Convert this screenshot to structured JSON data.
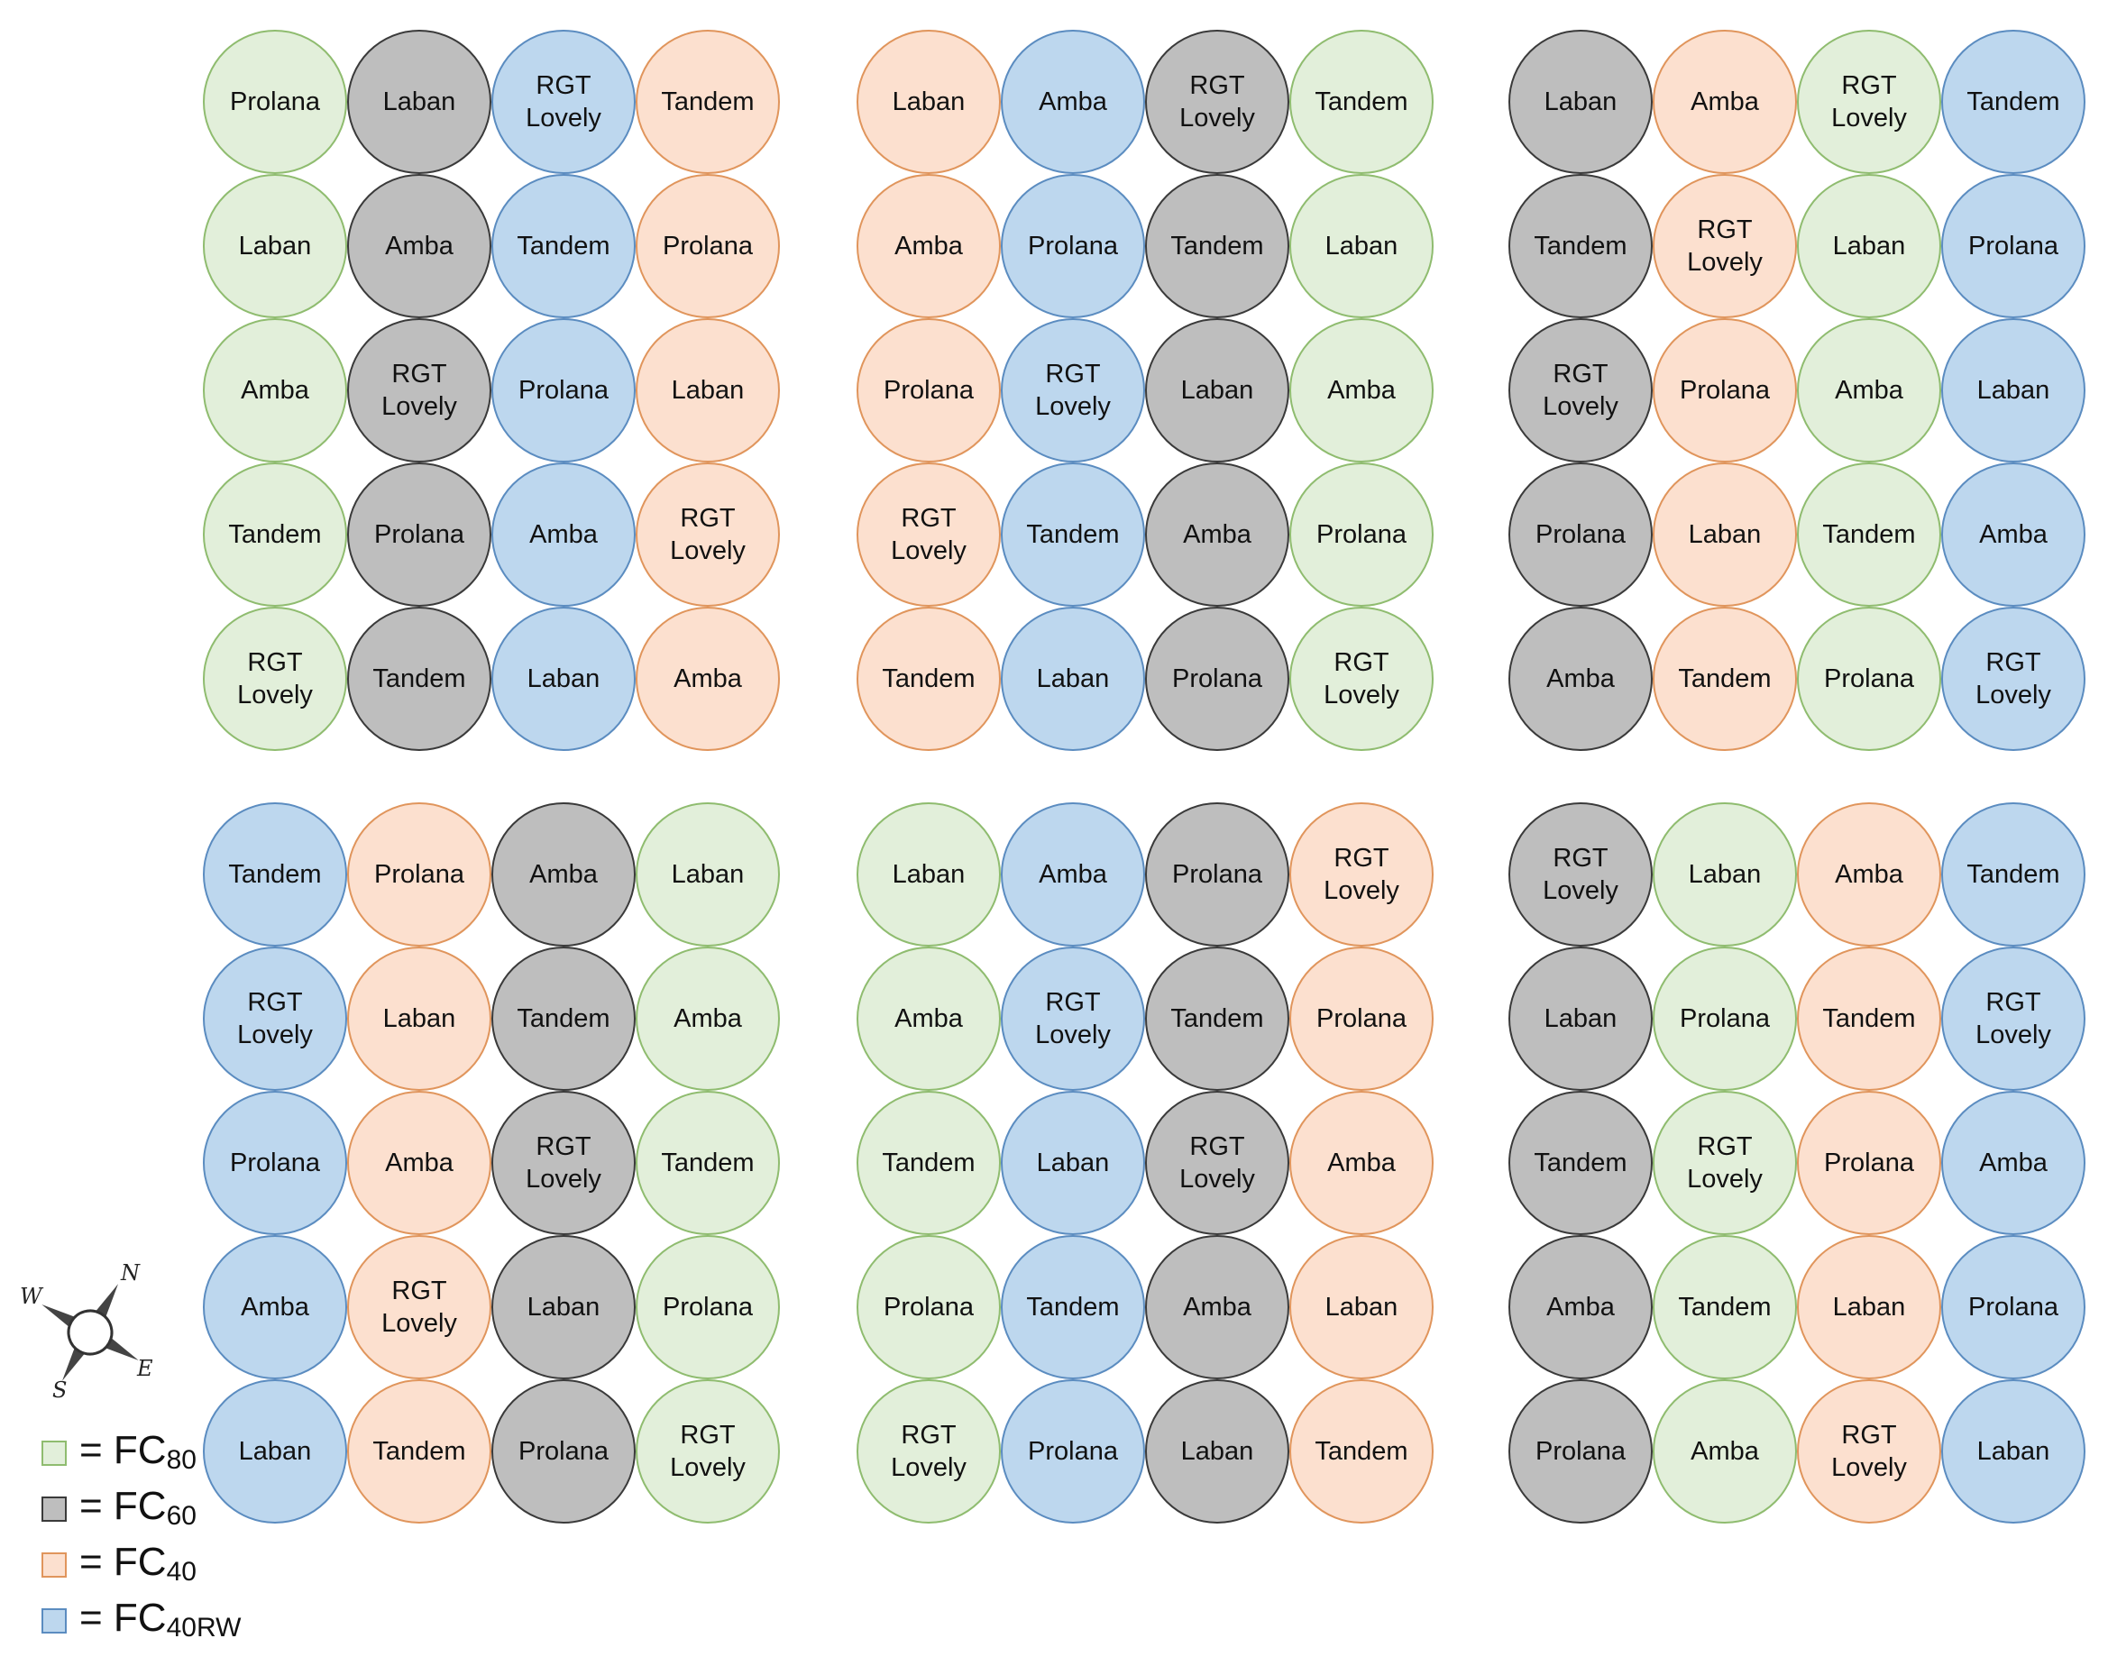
{
  "colors": {
    "FC80": {
      "fill": "#e2efda",
      "stroke": "#8fbc6f"
    },
    "FC60": {
      "fill": "#bebebe",
      "stroke": "#3a3a3a"
    },
    "FC40": {
      "fill": "#fce0cf",
      "stroke": "#e0955c"
    },
    "FC40RW": {
      "fill": "#bdd7ee",
      "stroke": "#5b8cc0"
    }
  },
  "plots": [
    {
      "column_treatments": [
        "FC80",
        "FC60",
        "FC40RW",
        "FC40"
      ],
      "rows": [
        [
          "Prolana",
          "Laban",
          "RGT\nLovely",
          "Tandem"
        ],
        [
          "Laban",
          "Amba",
          "Tandem",
          "Prolana"
        ],
        [
          "Amba",
          "RGT\nLovely",
          "Prolana",
          "Laban"
        ],
        [
          "Tandem",
          "Prolana",
          "Amba",
          "RGT\nLovely"
        ],
        [
          "RGT\nLovely",
          "Tandem",
          "Laban",
          "Amba"
        ]
      ]
    },
    {
      "column_treatments": [
        "FC40",
        "FC40RW",
        "FC60",
        "FC80"
      ],
      "rows": [
        [
          "Laban",
          "Amba",
          "RGT\nLovely",
          "Tandem"
        ],
        [
          "Amba",
          "Prolana",
          "Tandem",
          "Laban"
        ],
        [
          "Prolana",
          "RGT\nLovely",
          "Laban",
          "Amba"
        ],
        [
          "RGT\nLovely",
          "Tandem",
          "Amba",
          "Prolana"
        ],
        [
          "Tandem",
          "Laban",
          "Prolana",
          "RGT\nLovely"
        ]
      ]
    },
    {
      "column_treatments": [
        "FC60",
        "FC40",
        "FC80",
        "FC40RW"
      ],
      "rows": [
        [
          "Laban",
          "Amba",
          "RGT\nLovely",
          "Tandem"
        ],
        [
          "Tandem",
          "RGT\nLovely",
          "Laban",
          "Prolana"
        ],
        [
          "RGT\nLovely",
          "Prolana",
          "Amba",
          "Laban"
        ],
        [
          "Prolana",
          "Laban",
          "Tandem",
          "Amba"
        ],
        [
          "Amba",
          "Tandem",
          "Prolana",
          "RGT\nLovely"
        ]
      ]
    },
    {
      "column_treatments": [
        "FC40RW",
        "FC40",
        "FC60",
        "FC80"
      ],
      "rows": [
        [
          "Tandem",
          "Prolana",
          "Amba",
          "Laban"
        ],
        [
          "RGT\nLovely",
          "Laban",
          "Tandem",
          "Amba"
        ],
        [
          "Prolana",
          "Amba",
          "RGT\nLovely",
          "Tandem"
        ],
        [
          "Amba",
          "RGT\nLovely",
          "Laban",
          "Prolana"
        ],
        [
          "Laban",
          "Tandem",
          "Prolana",
          "RGT\nLovely"
        ]
      ]
    },
    {
      "column_treatments": [
        "FC80",
        "FC40RW",
        "FC60",
        "FC40"
      ],
      "rows": [
        [
          "Laban",
          "Amba",
          "Prolana",
          "RGT\nLovely"
        ],
        [
          "Amba",
          "RGT\nLovely",
          "Tandem",
          "Prolana"
        ],
        [
          "Tandem",
          "Laban",
          "RGT\nLovely",
          "Amba"
        ],
        [
          "Prolana",
          "Tandem",
          "Amba",
          "Laban"
        ],
        [
          "RGT\nLovely",
          "Prolana",
          "Laban",
          "Tandem"
        ]
      ]
    },
    {
      "column_treatments": [
        "FC60",
        "FC80",
        "FC40",
        "FC40RW"
      ],
      "rows": [
        [
          "RGT\nLovely",
          "Laban",
          "Amba",
          "Tandem"
        ],
        [
          "Laban",
          "Prolana",
          "Tandem",
          "RGT\nLovely"
        ],
        [
          "Tandem",
          "RGT\nLovely",
          "Prolana",
          "Amba"
        ],
        [
          "Amba",
          "Tandem",
          "Laban",
          "Prolana"
        ],
        [
          "Prolana",
          "Amba",
          "RGT\nLovely",
          "Laban"
        ]
      ]
    }
  ],
  "legend": [
    {
      "key": "FC80",
      "eq": "= FC",
      "sub": "80"
    },
    {
      "key": "FC60",
      "eq": "= FC",
      "sub": "60"
    },
    {
      "key": "FC40",
      "eq": "= FC",
      "sub": "40"
    },
    {
      "key": "FC40RW",
      "eq": "= FC",
      "sub": "40RW"
    }
  ],
  "compass": {
    "n": "N",
    "e": "E",
    "s": "S",
    "w": "W"
  }
}
